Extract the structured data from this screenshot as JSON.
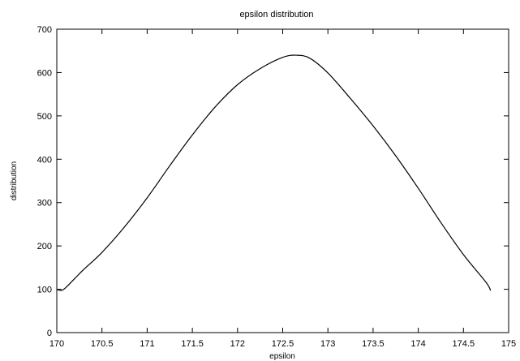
{
  "chart_data": {
    "type": "line",
    "title": "epsilon distribution",
    "xlabel": "epsilon",
    "ylabel": "distribution",
    "xlim": [
      170,
      175
    ],
    "ylim": [
      0,
      700
    ],
    "grid": false,
    "x_ticks": [
      170,
      170.5,
      171,
      171.5,
      172,
      172.5,
      173,
      173.5,
      174,
      174.5,
      175
    ],
    "x_tick_labels": [
      "170",
      "170.5",
      "171",
      "171.5",
      "172",
      "172.5",
      "173",
      "173.5",
      "174",
      "174.5",
      "175"
    ],
    "y_ticks": [
      0,
      100,
      200,
      300,
      400,
      500,
      600,
      700
    ],
    "y_tick_labels": [
      "0",
      "100",
      "200",
      "300",
      "400",
      "500",
      "600",
      "700"
    ],
    "series": [
      {
        "color": "#000000",
        "x": [
          170.0,
          170.05,
          170.1,
          170.2,
          170.3,
          170.5,
          170.75,
          171.0,
          171.25,
          171.5,
          171.75,
          172.0,
          172.25,
          172.5,
          172.65,
          172.8,
          173.0,
          173.25,
          173.5,
          173.75,
          174.0,
          174.25,
          174.5,
          174.75,
          174.8
        ],
        "y": [
          100,
          97,
          104,
          125,
          146,
          185,
          244,
          311,
          385,
          456,
          520,
          572,
          609,
          635,
          640,
          633,
          599,
          540,
          477,
          408,
          333,
          254,
          180,
          116,
          97
        ]
      }
    ]
  }
}
